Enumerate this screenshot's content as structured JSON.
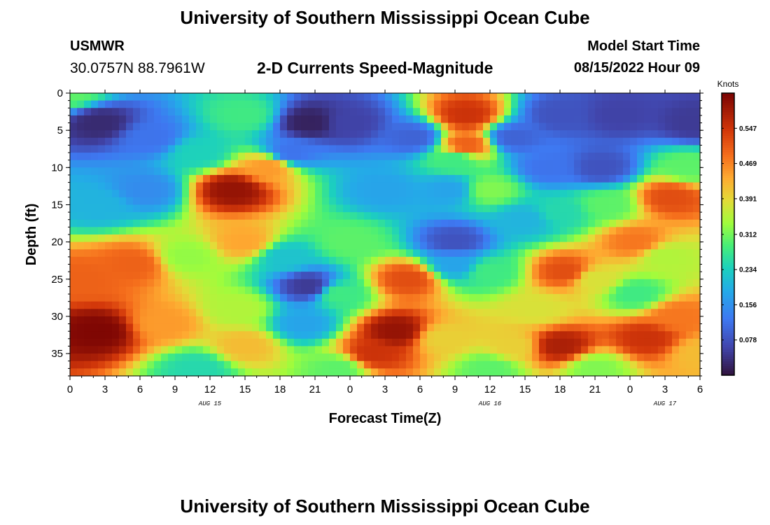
{
  "header": {
    "title": "University of Southern Mississippi Ocean Cube",
    "station": "USMWR",
    "coordinates": "30.0757N  88.7961W",
    "subtitle": "2-D Currents Speed-Magnitude",
    "model_start_label": "Model Start Time",
    "model_start_value": "08/15/2022 Hour 09"
  },
  "footer": {
    "title": "University of Southern Mississippi Ocean Cube"
  },
  "chart_data": {
    "type": "heatmap",
    "title": "2-D Currents Speed-Magnitude",
    "xlabel": "Forecast Time(Z)",
    "ylabel": "Depth (ft)",
    "x_hours_range": [
      0,
      54
    ],
    "x_tick_hours": [
      0,
      3,
      6,
      9,
      12,
      15,
      18,
      21,
      24,
      27,
      30,
      33,
      36,
      39,
      42,
      45,
      48,
      51,
      54
    ],
    "x_tick_labels": [
      "0",
      "3",
      "6",
      "9",
      "12",
      "15",
      "18",
      "21",
      "0",
      "3",
      "6",
      "9",
      "12",
      "15",
      "18",
      "21",
      "0",
      "3",
      "6"
    ],
    "date_labels": [
      {
        "hour": 12,
        "label": "AUG 15"
      },
      {
        "hour": 36,
        "label": "AUG 16"
      },
      {
        "hour": 51,
        "label": "AUG 17"
      }
    ],
    "y_range": [
      0,
      38
    ],
    "y_inverted": true,
    "y_ticks": [
      0,
      5,
      10,
      15,
      20,
      25,
      30,
      35
    ],
    "colorbar": {
      "label": "Knots",
      "range": [
        0,
        0.625
      ],
      "tick_values": [
        0.078,
        0.156,
        0.234,
        0.312,
        0.391,
        0.469,
        0.547
      ],
      "tick_labels": [
        "0.078",
        "0.156",
        "0.234",
        "0.312",
        "0.391",
        "0.469",
        "0.547"
      ]
    },
    "grid_resolution": {
      "hour_step": 0.6,
      "depth_step": 1
    },
    "features_description_units": "speed in knots",
    "features": [
      {
        "t": 0,
        "d": 0,
        "v": 0.3
      },
      {
        "t": 2.5,
        "d": 4,
        "v": 0.03
      },
      {
        "t": 7,
        "d": 6,
        "v": 0.12
      },
      {
        "t": 6.5,
        "d": 13,
        "v": 0.15
      },
      {
        "t": 2.5,
        "d": 15,
        "v": 0.2
      },
      {
        "t": 11,
        "d": 8,
        "v": 0.24
      },
      {
        "t": 15,
        "d": 3,
        "v": 0.28
      },
      {
        "t": 14,
        "d": 13,
        "v": 0.6
      },
      {
        "t": 15,
        "d": 20,
        "v": 0.44
      },
      {
        "t": 17,
        "d": 10,
        "v": 0.45
      },
      {
        "t": 10,
        "d": 22,
        "v": 0.33
      },
      {
        "t": 11,
        "d": 37,
        "v": 0.25
      },
      {
        "t": 2.5,
        "d": 32,
        "v": 0.62
      },
      {
        "t": 5.5,
        "d": 23,
        "v": 0.5
      },
      {
        "t": 1,
        "d": 25,
        "v": 0.5
      },
      {
        "t": 8,
        "d": 31,
        "v": 0.45
      },
      {
        "t": 14.5,
        "d": 29,
        "v": 0.35
      },
      {
        "t": 15,
        "d": 34,
        "v": 0.42
      },
      {
        "t": 20.5,
        "d": 4,
        "v": 0.02
      },
      {
        "t": 24,
        "d": 4,
        "v": 0.06
      },
      {
        "t": 29.5,
        "d": 6,
        "v": 0.1
      },
      {
        "t": 32.5,
        "d": 13,
        "v": 0.18
      },
      {
        "t": 27,
        "d": 13,
        "v": 0.18
      },
      {
        "t": 19,
        "d": 8,
        "v": 0.12
      },
      {
        "t": 18.5,
        "d": 22,
        "v": 0.22
      },
      {
        "t": 20.5,
        "d": 26,
        "v": 0.05
      },
      {
        "t": 20,
        "d": 31,
        "v": 0.18
      },
      {
        "t": 24,
        "d": 20,
        "v": 0.3
      },
      {
        "t": 23,
        "d": 27,
        "v": 0.28
      },
      {
        "t": 23,
        "d": 37,
        "v": 0.3
      },
      {
        "t": 34,
        "d": 3,
        "v": 0.55
      },
      {
        "t": 34,
        "d": 7,
        "v": 0.5
      },
      {
        "t": 36,
        "d": 13,
        "v": 0.32
      },
      {
        "t": 33,
        "d": 9,
        "v": 0.28
      },
      {
        "t": 33,
        "d": 20,
        "v": 0.08
      },
      {
        "t": 33,
        "d": 23,
        "v": 0.18
      },
      {
        "t": 36,
        "d": 24,
        "v": 0.28
      },
      {
        "t": 28,
        "d": 32,
        "v": 0.6
      },
      {
        "t": 29,
        "d": 25,
        "v": 0.52
      },
      {
        "t": 26,
        "d": 35,
        "v": 0.55
      },
      {
        "t": 32,
        "d": 33,
        "v": 0.4
      },
      {
        "t": 36,
        "d": 37,
        "v": 0.3
      },
      {
        "t": 38,
        "d": 6,
        "v": 0.1
      },
      {
        "t": 42,
        "d": 3,
        "v": 0.08
      },
      {
        "t": 47,
        "d": 3,
        "v": 0.06
      },
      {
        "t": 45.5,
        "d": 10,
        "v": 0.08
      },
      {
        "t": 41,
        "d": 10,
        "v": 0.12
      },
      {
        "t": 39,
        "d": 17,
        "v": 0.2
      },
      {
        "t": 42,
        "d": 16,
        "v": 0.25
      },
      {
        "t": 42.5,
        "d": 24,
        "v": 0.52
      },
      {
        "t": 40,
        "d": 29,
        "v": 0.38
      },
      {
        "t": 38,
        "d": 34,
        "v": 0.4
      },
      {
        "t": 42,
        "d": 34,
        "v": 0.58
      },
      {
        "t": 46,
        "d": 15,
        "v": 0.3
      },
      {
        "t": 45,
        "d": 25,
        "v": 0.38
      },
      {
        "t": 45,
        "d": 37,
        "v": 0.32
      },
      {
        "t": 48.5,
        "d": 20,
        "v": 0.48
      },
      {
        "t": 51.5,
        "d": 14,
        "v": 0.52
      },
      {
        "t": 51,
        "d": 22,
        "v": 0.35
      },
      {
        "t": 53,
        "d": 10,
        "v": 0.3
      },
      {
        "t": 48.5,
        "d": 27,
        "v": 0.28
      },
      {
        "t": 49.5,
        "d": 33,
        "v": 0.55
      },
      {
        "t": 52,
        "d": 30,
        "v": 0.48
      },
      {
        "t": 53.5,
        "d": 4,
        "v": 0.05
      },
      {
        "t": 54,
        "d": 35,
        "v": 0.42
      }
    ]
  }
}
